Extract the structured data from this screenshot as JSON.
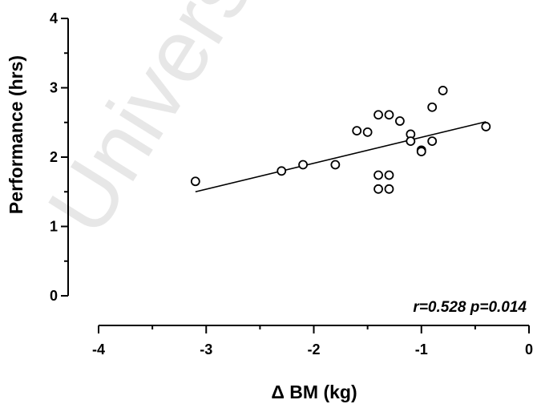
{
  "watermark": "University of Cape Town",
  "chart_data": {
    "type": "scatter",
    "title": "",
    "xlabel": "Δ BM (kg)",
    "ylabel": "Performance (hrs)",
    "annotation": "r=0.528 p=0.014",
    "xlim": [
      -4,
      0
    ],
    "ylim": [
      0,
      4
    ],
    "xticks": [
      -4,
      -3,
      -2,
      -1,
      0
    ],
    "yticks": [
      0,
      1,
      2,
      3,
      4
    ],
    "grid": false,
    "legend": "none",
    "points": [
      {
        "x": -3.1,
        "y": 1.65
      },
      {
        "x": -2.3,
        "y": 1.8
      },
      {
        "x": -2.1,
        "y": 1.89
      },
      {
        "x": -1.8,
        "y": 1.89
      },
      {
        "x": -1.6,
        "y": 2.38
      },
      {
        "x": -1.5,
        "y": 2.36
      },
      {
        "x": -1.4,
        "y": 2.61
      },
      {
        "x": -1.4,
        "y": 1.74
      },
      {
        "x": -1.4,
        "y": 1.54
      },
      {
        "x": -1.3,
        "y": 2.61
      },
      {
        "x": -1.3,
        "y": 1.74
      },
      {
        "x": -1.3,
        "y": 1.54
      },
      {
        "x": -1.2,
        "y": 2.52
      },
      {
        "x": -1.1,
        "y": 2.33
      },
      {
        "x": -1.1,
        "y": 2.23
      },
      {
        "x": -1.0,
        "y": 2.1
      },
      {
        "x": -1.0,
        "y": 2.08
      },
      {
        "x": -0.9,
        "y": 2.72
      },
      {
        "x": -0.9,
        "y": 2.23
      },
      {
        "x": -0.8,
        "y": 2.96
      },
      {
        "x": -0.4,
        "y": 2.44
      }
    ],
    "regression_line": {
      "x": [
        -3.1,
        -0.4
      ],
      "y": [
        1.5,
        2.51
      ]
    }
  }
}
